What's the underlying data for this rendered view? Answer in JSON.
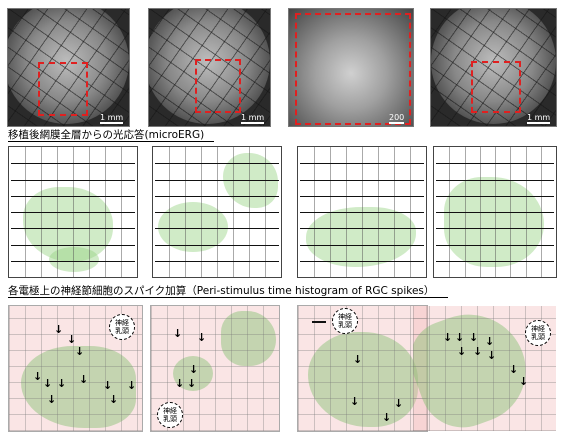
{
  "microscopy": {
    "scale_1": "1 mm",
    "scale_2": "1 mm",
    "scale_3": "200",
    "scale_4": "1 mm"
  },
  "headings": {
    "microerg": "移植後網膜全層からの光応答(microERG)",
    "psth": "各電極上の神経節細胞のスパイク加算（Peri-stimulus time histogram of RGC spikes）"
  },
  "optic_nerve_label": "神経乳頭",
  "colors": {
    "red_box": "#e02020",
    "green_region": "#96d282",
    "pink_region": "#f0b4b4"
  }
}
